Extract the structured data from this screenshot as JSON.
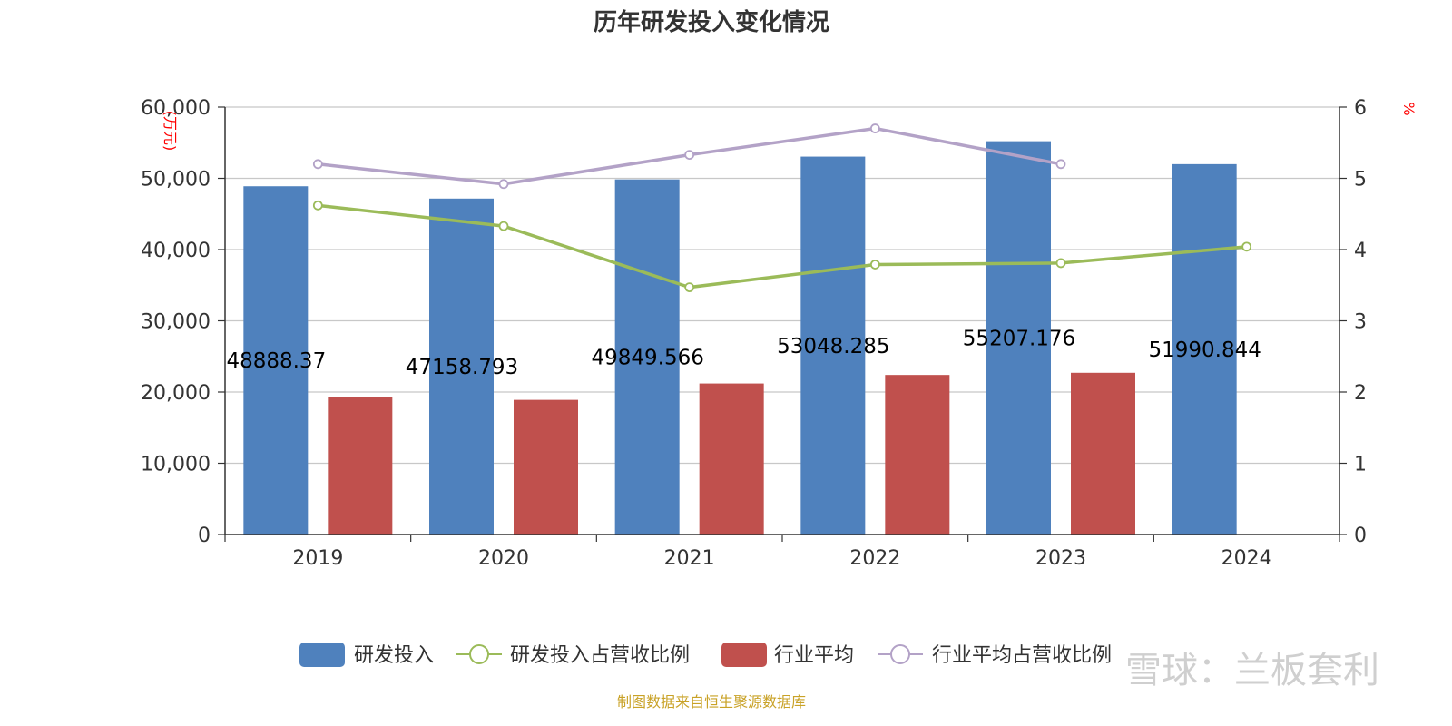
{
  "chart_data": {
    "type": "bar",
    "title": "历年研发投入变化情况",
    "categories": [
      "2019",
      "2020",
      "2021",
      "2022",
      "2023",
      "2024"
    ],
    "left_axis": {
      "unit": "(万元)",
      "ylim": [
        0,
        60000
      ],
      "ticks": [
        "0",
        "10,000",
        "20,000",
        "30,000",
        "40,000",
        "50,000",
        "60,000"
      ]
    },
    "right_axis": {
      "unit": "%",
      "ylim": [
        0,
        6
      ],
      "ticks": [
        "0",
        "1",
        "2",
        "3",
        "4",
        "5",
        "6"
      ]
    },
    "series": [
      {
        "name": "研发投入",
        "kind": "bar",
        "axis": "left",
        "color": "#4f81bd",
        "values": [
          48888.37,
          47158.793,
          49849.566,
          53048.285,
          55207.176,
          51990.844
        ],
        "labels": [
          "48888.37",
          "47158.793",
          "49849.566",
          "53048.285",
          "55207.176",
          "51990.844"
        ]
      },
      {
        "name": "研发投入占营收比例",
        "kind": "line",
        "axis": "right",
        "color": "#9bbb59",
        "values": [
          4.62,
          4.33,
          3.47,
          3.79,
          3.81,
          4.04
        ]
      },
      {
        "name": "行业平均",
        "kind": "bar",
        "axis": "left",
        "color": "#c0504d",
        "values": [
          19300,
          18900,
          21200,
          22400,
          22700,
          null
        ]
      },
      {
        "name": "行业平均占营收比例",
        "kind": "line",
        "axis": "right",
        "color": "#b3a2c7",
        "values": [
          5.2,
          4.92,
          5.33,
          5.7,
          5.2,
          null
        ]
      }
    ],
    "grid": true,
    "legend_position": "bottom"
  },
  "footer": {
    "source": "制图数据来自恒生聚源数据库",
    "watermark": "雪球：兰板套利"
  }
}
